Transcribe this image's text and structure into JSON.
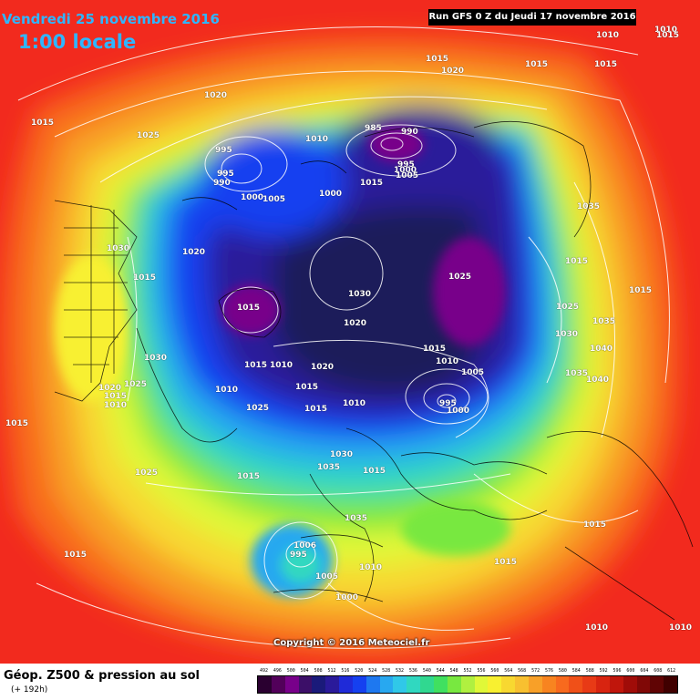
{
  "header": {
    "date": "Vendredi 25 novembre 2016",
    "time": "1:00 locale",
    "run": "Run GFS 0 Z du Jeudi 17 novembre 2016"
  },
  "copyright": "Copyright © 2016 Meteociel.fr",
  "footer": {
    "title": "Géop. Z500 & pression au sol",
    "subtitle": "(+ 192h)"
  },
  "legend": {
    "labels": [
      "492",
      "496",
      "500",
      "504",
      "508",
      "512",
      "516",
      "520",
      "524",
      "528",
      "532",
      "536",
      "540",
      "544",
      "548",
      "552",
      "556",
      "560",
      "564",
      "568",
      "572",
      "576",
      "580",
      "584",
      "588",
      "592",
      "596",
      "600",
      "604",
      "608",
      "612"
    ],
    "colors": [
      "#2a0030",
      "#52005a",
      "#78008a",
      "#3c0f68",
      "#1a1a7a",
      "#2a1a9a",
      "#1f2ad8",
      "#1540f0",
      "#1e78f0",
      "#28a8f0",
      "#30c8e8",
      "#30d8c0",
      "#30d890",
      "#40e060",
      "#78e840",
      "#b0f040",
      "#e0f838",
      "#f8f030",
      "#f8d830",
      "#f8c030",
      "#f8a028",
      "#f88420",
      "#f86a1e",
      "#f05018",
      "#e83a16",
      "#d82410",
      "#c0160c",
      "#a00c08",
      "#800806",
      "#600404",
      "#400000"
    ]
  },
  "pressure_labels": [
    "1010",
    "1020",
    "1015",
    "1015",
    "1015",
    "1020",
    "1015",
    "1025",
    "995",
    "995",
    "990",
    "1000",
    "1005",
    "1010",
    "985",
    "990",
    "995",
    "1000",
    "1005",
    "1015",
    "1000",
    "1035",
    "1030",
    "1015",
    "1020",
    "1025",
    "1030",
    "1035",
    "1015",
    "1015",
    "1025",
    "1040",
    "1035",
    "1020",
    "1015",
    "1030",
    "1040",
    "1010",
    "1005",
    "1015",
    "995",
    "1000",
    "1030",
    "1015",
    "1025",
    "1020",
    "1015",
    "1010",
    "1010",
    "1025",
    "1010",
    "1015",
    "1020",
    "1010",
    "1015",
    "1015",
    "1015",
    "1030",
    "1035",
    "1025",
    "1015",
    "1035",
    "1015",
    "1015",
    "1010",
    "1015",
    "1006",
    "995",
    "1005",
    "1000",
    "1010",
    "1010",
    "1010",
    "1015"
  ]
}
